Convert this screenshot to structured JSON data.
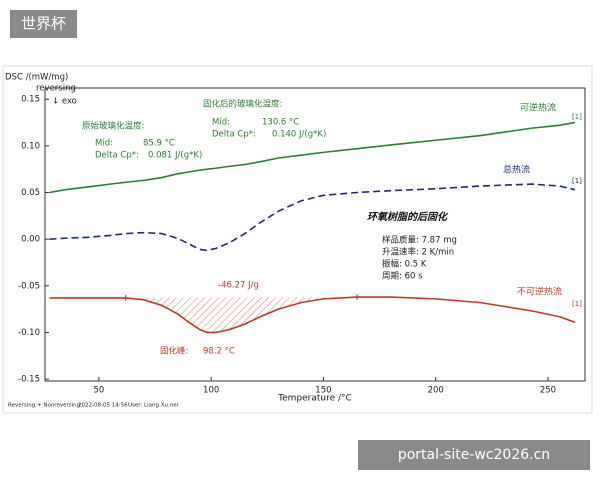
{
  "watermarks": {
    "top_left": "世界杯",
    "bottom_right": "portal-site-wc2026.cn"
  },
  "chart_data": {
    "type": "line",
    "y_title": [
      "DSC /(mW/mg)",
      "reversing",
      "↓ exo"
    ],
    "x_title": "Temperature /°C",
    "footer": [
      "Reversing + Nonreversing",
      "2022-08-05 14:56",
      "User: Liang.Xu.nei"
    ],
    "xlim": [
      26,
      266.5
    ],
    "ylim": [
      -0.152,
      0.162
    ],
    "xticks": [
      50,
      100,
      150,
      200,
      250
    ],
    "yticks": [
      0.15,
      {
        "value": 0.1,
        "label": "0.10"
      },
      0.05,
      {
        "value": 0,
        "label": "0.00"
      },
      -0.05,
      {
        "value": -0.1,
        "label": "-0.10"
      },
      -0.15
    ],
    "x": [
      28,
      35,
      45,
      55,
      62,
      70,
      78,
      85,
      90,
      95,
      98.2,
      102,
      108,
      115,
      122,
      130,
      140,
      150,
      165,
      180,
      200,
      220,
      243,
      255,
      262
    ],
    "series": [
      {
        "name": "可逆热流",
        "tag": "[1]",
        "color": "#2e7d32",
        "dash": false,
        "values": [
          0.05,
          0.053,
          0.056,
          0.059,
          0.061,
          0.063,
          0.066,
          0.07,
          0.072,
          0.074,
          0.075,
          0.076,
          0.078,
          0.08,
          0.083,
          0.087,
          0.09,
          0.093,
          0.097,
          0.101,
          0.106,
          0.111,
          0.119,
          0.122,
          0.125
        ]
      },
      {
        "name": "总热流",
        "tag": "[1]",
        "color": "#1f2a78",
        "dash": true,
        "values": [
          0.0,
          0.001,
          0.002,
          0.004,
          0.006,
          0.007,
          0.006,
          0.001,
          -0.005,
          -0.011,
          -0.012,
          -0.01,
          -0.004,
          0.006,
          0.018,
          0.03,
          0.041,
          0.047,
          0.05,
          0.052,
          0.054,
          0.057,
          0.059,
          0.057,
          0.053
        ]
      },
      {
        "name": "不可逆热流",
        "tag": "[1]",
        "color": "#c0392b",
        "dash": false,
        "integration_limits": [
          62,
          165
        ],
        "values": [
          -0.063,
          -0.063,
          -0.063,
          -0.063,
          -0.063,
          -0.065,
          -0.071,
          -0.08,
          -0.089,
          -0.097,
          -0.1,
          -0.1,
          -0.097,
          -0.091,
          -0.083,
          -0.075,
          -0.068,
          -0.064,
          -0.062,
          -0.062,
          -0.064,
          -0.068,
          -0.077,
          -0.083,
          -0.089
        ]
      }
    ],
    "annotations": [
      {
        "text": "固化后的玻璃化温度:",
        "color": "#2e7d32"
      },
      {
        "text": "Mid:",
        "color": "#2e7d32"
      },
      {
        "text": "130.6 °C",
        "color": "#2e7d32"
      },
      {
        "text": "Delta Cp*:",
        "color": "#2e7d32"
      },
      {
        "text": "0.140 J/(g*K)",
        "color": "#2e7d32"
      },
      {
        "text": "原始玻璃化温度:",
        "color": "#2e7d32"
      },
      {
        "text": "Mid:",
        "color": "#2e7d32"
      },
      {
        "text": "85.9 °C",
        "color": "#2e7d32"
      },
      {
        "text": "Delta Cp*:",
        "color": "#2e7d32"
      },
      {
        "text": "0.081 J/(g*K)",
        "color": "#2e7d32"
      },
      {
        "text": "-46.27 J/g",
        "color": "#c0392b"
      },
      {
        "text": "固化峰:",
        "color": "#c0392b"
      },
      {
        "text": "98.2 °C",
        "color": "#c0392b"
      },
      {
        "text": "环氧树脂的后固化",
        "color": "#111"
      },
      {
        "text": "样品质量:  7.87 mg",
        "color": "#222"
      },
      {
        "text": "升温速率:  2 K/min",
        "color": "#222"
      },
      {
        "text": "振幅:  0.5 K",
        "color": "#222"
      },
      {
        "text": "周期:  60 s",
        "color": "#222"
      }
    ]
  }
}
